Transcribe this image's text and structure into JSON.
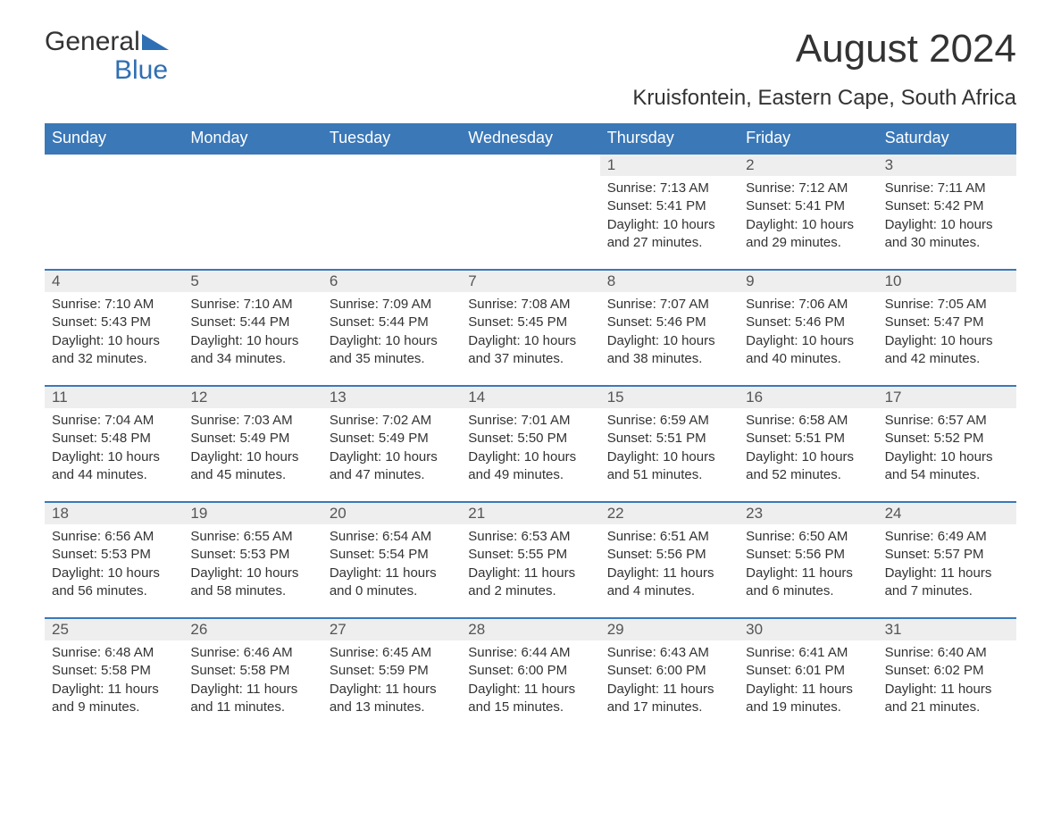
{
  "logo": {
    "word1": "General",
    "word2": "Blue"
  },
  "title": "August 2024",
  "subtitle": "Kruisfontein, Eastern Cape, South Africa",
  "colors": {
    "header_bg": "#3a78b8",
    "header_text": "#ffffff",
    "daynum_bg": "#eeeeee",
    "cell_border": "#3a78b8",
    "body_text": "#333333",
    "logo_accent": "#2f6fb3"
  },
  "weekdays": [
    "Sunday",
    "Monday",
    "Tuesday",
    "Wednesday",
    "Thursday",
    "Friday",
    "Saturday"
  ],
  "weeks": [
    [
      {
        "empty": true
      },
      {
        "empty": true
      },
      {
        "empty": true
      },
      {
        "empty": true
      },
      {
        "day": "1",
        "sunrise": "Sunrise: 7:13 AM",
        "sunset": "Sunset: 5:41 PM",
        "daylight": "Daylight: 10 hours and 27 minutes."
      },
      {
        "day": "2",
        "sunrise": "Sunrise: 7:12 AM",
        "sunset": "Sunset: 5:41 PM",
        "daylight": "Daylight: 10 hours and 29 minutes."
      },
      {
        "day": "3",
        "sunrise": "Sunrise: 7:11 AM",
        "sunset": "Sunset: 5:42 PM",
        "daylight": "Daylight: 10 hours and 30 minutes."
      }
    ],
    [
      {
        "day": "4",
        "sunrise": "Sunrise: 7:10 AM",
        "sunset": "Sunset: 5:43 PM",
        "daylight": "Daylight: 10 hours and 32 minutes."
      },
      {
        "day": "5",
        "sunrise": "Sunrise: 7:10 AM",
        "sunset": "Sunset: 5:44 PM",
        "daylight": "Daylight: 10 hours and 34 minutes."
      },
      {
        "day": "6",
        "sunrise": "Sunrise: 7:09 AM",
        "sunset": "Sunset: 5:44 PM",
        "daylight": "Daylight: 10 hours and 35 minutes."
      },
      {
        "day": "7",
        "sunrise": "Sunrise: 7:08 AM",
        "sunset": "Sunset: 5:45 PM",
        "daylight": "Daylight: 10 hours and 37 minutes."
      },
      {
        "day": "8",
        "sunrise": "Sunrise: 7:07 AM",
        "sunset": "Sunset: 5:46 PM",
        "daylight": "Daylight: 10 hours and 38 minutes."
      },
      {
        "day": "9",
        "sunrise": "Sunrise: 7:06 AM",
        "sunset": "Sunset: 5:46 PM",
        "daylight": "Daylight: 10 hours and 40 minutes."
      },
      {
        "day": "10",
        "sunrise": "Sunrise: 7:05 AM",
        "sunset": "Sunset: 5:47 PM",
        "daylight": "Daylight: 10 hours and 42 minutes."
      }
    ],
    [
      {
        "day": "11",
        "sunrise": "Sunrise: 7:04 AM",
        "sunset": "Sunset: 5:48 PM",
        "daylight": "Daylight: 10 hours and 44 minutes."
      },
      {
        "day": "12",
        "sunrise": "Sunrise: 7:03 AM",
        "sunset": "Sunset: 5:49 PM",
        "daylight": "Daylight: 10 hours and 45 minutes."
      },
      {
        "day": "13",
        "sunrise": "Sunrise: 7:02 AM",
        "sunset": "Sunset: 5:49 PM",
        "daylight": "Daylight: 10 hours and 47 minutes."
      },
      {
        "day": "14",
        "sunrise": "Sunrise: 7:01 AM",
        "sunset": "Sunset: 5:50 PM",
        "daylight": "Daylight: 10 hours and 49 minutes."
      },
      {
        "day": "15",
        "sunrise": "Sunrise: 6:59 AM",
        "sunset": "Sunset: 5:51 PM",
        "daylight": "Daylight: 10 hours and 51 minutes."
      },
      {
        "day": "16",
        "sunrise": "Sunrise: 6:58 AM",
        "sunset": "Sunset: 5:51 PM",
        "daylight": "Daylight: 10 hours and 52 minutes."
      },
      {
        "day": "17",
        "sunrise": "Sunrise: 6:57 AM",
        "sunset": "Sunset: 5:52 PM",
        "daylight": "Daylight: 10 hours and 54 minutes."
      }
    ],
    [
      {
        "day": "18",
        "sunrise": "Sunrise: 6:56 AM",
        "sunset": "Sunset: 5:53 PM",
        "daylight": "Daylight: 10 hours and 56 minutes."
      },
      {
        "day": "19",
        "sunrise": "Sunrise: 6:55 AM",
        "sunset": "Sunset: 5:53 PM",
        "daylight": "Daylight: 10 hours and 58 minutes."
      },
      {
        "day": "20",
        "sunrise": "Sunrise: 6:54 AM",
        "sunset": "Sunset: 5:54 PM",
        "daylight": "Daylight: 11 hours and 0 minutes."
      },
      {
        "day": "21",
        "sunrise": "Sunrise: 6:53 AM",
        "sunset": "Sunset: 5:55 PM",
        "daylight": "Daylight: 11 hours and 2 minutes."
      },
      {
        "day": "22",
        "sunrise": "Sunrise: 6:51 AM",
        "sunset": "Sunset: 5:56 PM",
        "daylight": "Daylight: 11 hours and 4 minutes."
      },
      {
        "day": "23",
        "sunrise": "Sunrise: 6:50 AM",
        "sunset": "Sunset: 5:56 PM",
        "daylight": "Daylight: 11 hours and 6 minutes."
      },
      {
        "day": "24",
        "sunrise": "Sunrise: 6:49 AM",
        "sunset": "Sunset: 5:57 PM",
        "daylight": "Daylight: 11 hours and 7 minutes."
      }
    ],
    [
      {
        "day": "25",
        "sunrise": "Sunrise: 6:48 AM",
        "sunset": "Sunset: 5:58 PM",
        "daylight": "Daylight: 11 hours and 9 minutes."
      },
      {
        "day": "26",
        "sunrise": "Sunrise: 6:46 AM",
        "sunset": "Sunset: 5:58 PM",
        "daylight": "Daylight: 11 hours and 11 minutes."
      },
      {
        "day": "27",
        "sunrise": "Sunrise: 6:45 AM",
        "sunset": "Sunset: 5:59 PM",
        "daylight": "Daylight: 11 hours and 13 minutes."
      },
      {
        "day": "28",
        "sunrise": "Sunrise: 6:44 AM",
        "sunset": "Sunset: 6:00 PM",
        "daylight": "Daylight: 11 hours and 15 minutes."
      },
      {
        "day": "29",
        "sunrise": "Sunrise: 6:43 AM",
        "sunset": "Sunset: 6:00 PM",
        "daylight": "Daylight: 11 hours and 17 minutes."
      },
      {
        "day": "30",
        "sunrise": "Sunrise: 6:41 AM",
        "sunset": "Sunset: 6:01 PM",
        "daylight": "Daylight: 11 hours and 19 minutes."
      },
      {
        "day": "31",
        "sunrise": "Sunrise: 6:40 AM",
        "sunset": "Sunset: 6:02 PM",
        "daylight": "Daylight: 11 hours and 21 minutes."
      }
    ]
  ]
}
